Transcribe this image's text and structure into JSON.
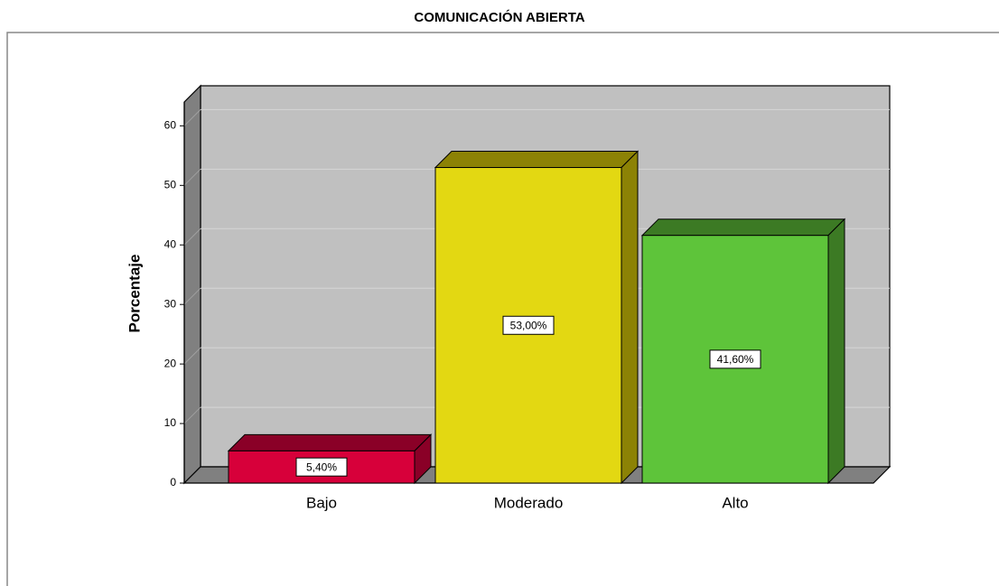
{
  "chart_data": {
    "type": "bar3d",
    "title": "COMUNICACIÓN ABIERTA",
    "y_label": "Porcentaje",
    "categories": [
      "Bajo",
      "Moderado",
      "Alto"
    ],
    "values": [
      5.4,
      53,
      41.6
    ],
    "value_labels": [
      "5,40%",
      "53,00%",
      "41,60%"
    ],
    "colors": [
      "#d7003a",
      "#e3d812",
      "#5ec43a"
    ],
    "side_colors": [
      "#8a0027",
      "#8c8205",
      "#3c7a24"
    ],
    "ylim": [
      0,
      64
    ],
    "yticks": [
      0,
      10,
      20,
      30,
      40,
      50,
      60
    ],
    "grid": true
  }
}
